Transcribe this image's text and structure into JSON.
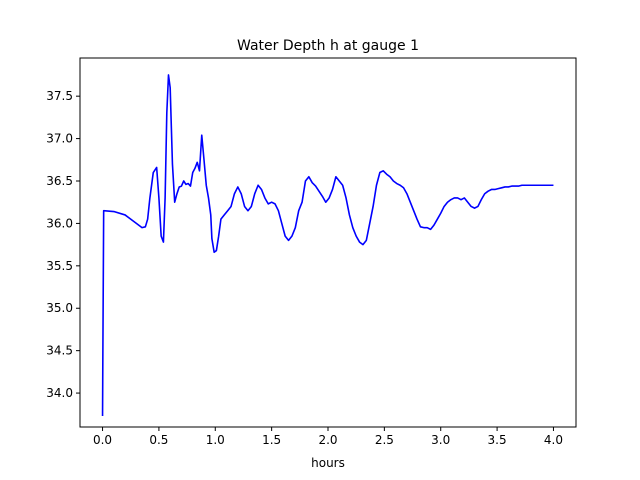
{
  "chart_data": {
    "type": "line",
    "title": "Water Depth h at gauge 1",
    "xlabel": "hours",
    "ylabel": "",
    "xlim": [
      -0.2,
      4.2
    ],
    "ylim": [
      33.6,
      37.95
    ],
    "xticks": [
      0.0,
      0.5,
      1.0,
      1.5,
      2.0,
      2.5,
      3.0,
      3.5,
      4.0
    ],
    "xtick_labels": [
      "0.0",
      "0.5",
      "1.0",
      "1.5",
      "2.0",
      "2.5",
      "3.0",
      "3.5",
      "4.0"
    ],
    "yticks": [
      34.0,
      34.5,
      35.0,
      35.5,
      36.0,
      36.5,
      37.0,
      37.5
    ],
    "ytick_labels": [
      "34.0",
      "34.5",
      "35.0",
      "35.5",
      "36.0",
      "36.5",
      "37.0",
      "37.5"
    ],
    "grid": false,
    "series": [
      {
        "color": "#0000ff",
        "x": [
          0.0,
          0.003,
          0.01,
          0.1,
          0.2,
          0.3,
          0.35,
          0.38,
          0.4,
          0.42,
          0.45,
          0.48,
          0.5,
          0.52,
          0.54,
          0.555,
          0.57,
          0.585,
          0.6,
          0.62,
          0.64,
          0.66,
          0.68,
          0.7,
          0.72,
          0.74,
          0.76,
          0.78,
          0.8,
          0.82,
          0.84,
          0.86,
          0.88,
          0.9,
          0.92,
          0.94,
          0.96,
          0.97,
          0.99,
          1.01,
          1.03,
          1.05,
          1.08,
          1.11,
          1.14,
          1.17,
          1.2,
          1.23,
          1.26,
          1.29,
          1.32,
          1.35,
          1.38,
          1.41,
          1.44,
          1.47,
          1.5,
          1.53,
          1.56,
          1.59,
          1.62,
          1.65,
          1.68,
          1.71,
          1.74,
          1.77,
          1.8,
          1.83,
          1.86,
          1.89,
          1.92,
          1.95,
          1.98,
          2.01,
          2.04,
          2.07,
          2.1,
          2.13,
          2.16,
          2.19,
          2.22,
          2.25,
          2.28,
          2.31,
          2.34,
          2.37,
          2.4,
          2.43,
          2.46,
          2.49,
          2.52,
          2.55,
          2.58,
          2.61,
          2.64,
          2.67,
          2.7,
          2.73,
          2.76,
          2.79,
          2.82,
          2.85,
          2.88,
          2.91,
          2.94,
          2.97,
          3.0,
          3.03,
          3.06,
          3.09,
          3.12,
          3.15,
          3.18,
          3.21,
          3.24,
          3.27,
          3.3,
          3.33,
          3.36,
          3.39,
          3.42,
          3.45,
          3.48,
          3.51,
          3.54,
          3.57,
          3.6,
          3.63,
          3.66,
          3.69,
          3.72,
          3.75,
          3.78,
          3.81,
          3.84,
          3.87,
          3.9,
          3.93,
          3.96,
          3.99,
          4.0
        ],
        "y": [
          33.73,
          34.5,
          36.15,
          36.14,
          36.1,
          36.0,
          35.95,
          35.96,
          36.05,
          36.3,
          36.6,
          36.66,
          36.3,
          35.85,
          35.78,
          36.3,
          37.3,
          37.75,
          37.6,
          36.7,
          36.25,
          36.35,
          36.43,
          36.44,
          36.5,
          36.46,
          36.47,
          36.44,
          36.6,
          36.65,
          36.72,
          36.62,
          37.04,
          36.75,
          36.45,
          36.3,
          36.1,
          35.82,
          35.66,
          35.68,
          35.85,
          36.05,
          36.1,
          36.15,
          36.2,
          36.35,
          36.43,
          36.35,
          36.2,
          36.15,
          36.2,
          36.35,
          36.45,
          36.4,
          36.3,
          36.23,
          36.25,
          36.23,
          36.15,
          36.0,
          35.85,
          35.8,
          35.85,
          35.95,
          36.15,
          36.25,
          36.5,
          36.55,
          36.48,
          36.44,
          36.38,
          36.32,
          36.25,
          36.3,
          36.4,
          36.55,
          36.5,
          36.45,
          36.3,
          36.1,
          35.95,
          35.85,
          35.78,
          35.75,
          35.8,
          36.0,
          36.2,
          36.45,
          36.6,
          36.62,
          36.58,
          36.55,
          36.5,
          36.47,
          36.45,
          36.42,
          36.35,
          36.25,
          36.15,
          36.05,
          35.96,
          35.95,
          35.95,
          35.93,
          35.98,
          36.05,
          36.12,
          36.2,
          36.25,
          36.28,
          36.3,
          36.3,
          36.28,
          36.3,
          36.25,
          36.2,
          36.18,
          36.2,
          36.28,
          36.35,
          36.38,
          36.4,
          36.4,
          36.41,
          36.42,
          36.43,
          36.43,
          36.44,
          36.44,
          36.44,
          36.45,
          36.45,
          36.45,
          36.45,
          36.45,
          36.45,
          36.45,
          36.45,
          36.45,
          36.45,
          36.45
        ]
      }
    ]
  }
}
